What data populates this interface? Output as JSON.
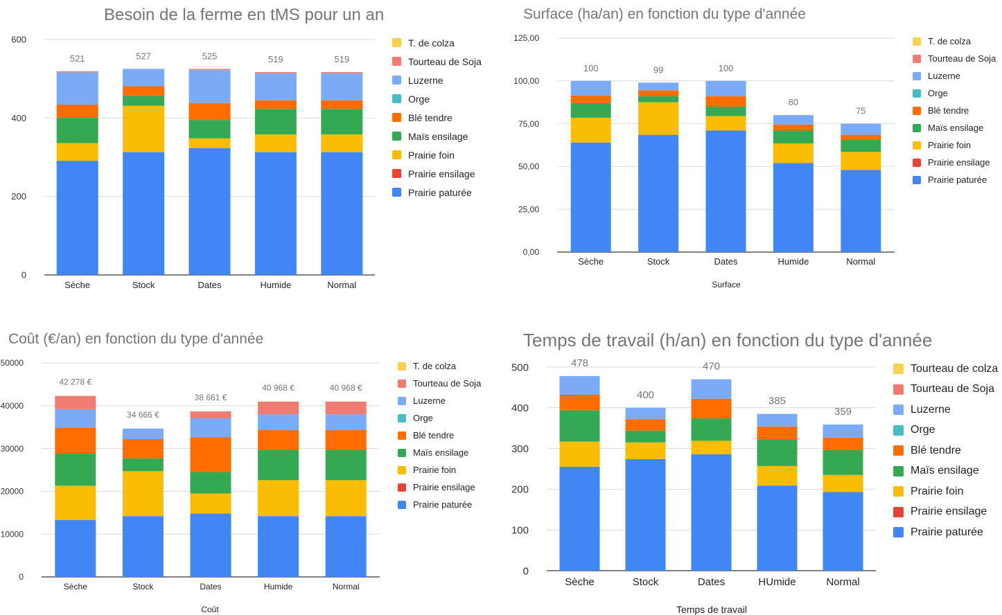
{
  "chart_data": [
    {
      "type": "bar",
      "stacked": true,
      "title": "Besoin de la ferme en tMS pour un an",
      "xlabel": "",
      "ylabel": "",
      "ylim": [
        0,
        600
      ],
      "yticks": [
        "0",
        "200",
        "400",
        "600"
      ],
      "categories": [
        "Sèche",
        "Stock",
        "Dates",
        "Humide",
        "Normal"
      ],
      "totals_labels": [
        "521",
        "527",
        "525",
        "519",
        "519"
      ],
      "series": [
        {
          "name": "Prairie paturée",
          "color": "#4285f4",
          "values": [
            291,
            313,
            323,
            313,
            313
          ]
        },
        {
          "name": "Prairie ensilage",
          "color": "#ea4335",
          "values": [
            0,
            0,
            0,
            0,
            0
          ]
        },
        {
          "name": "Prairie foin",
          "color": "#fbbc04",
          "values": [
            45,
            118,
            25,
            45,
            45
          ]
        },
        {
          "name": "Maïs ensilage",
          "color": "#34a853",
          "values": [
            65,
            25,
            47,
            65,
            65
          ]
        },
        {
          "name": "Blé tendre",
          "color": "#ff6d01",
          "values": [
            33,
            25,
            43,
            22,
            22
          ]
        },
        {
          "name": "Orge",
          "color": "#46bdc6",
          "values": [
            0,
            0,
            0,
            0,
            0
          ]
        },
        {
          "name": "Luzerne",
          "color": "#7baaf7",
          "values": [
            82,
            44,
            84,
            69,
            69
          ]
        },
        {
          "name": "Tourteau de Soja",
          "color": "#f07b72",
          "values": [
            3,
            0,
            3,
            3,
            3
          ]
        },
        {
          "name": "T. de colza",
          "color": "#fcd04f",
          "values": [
            0,
            0,
            0,
            0,
            0
          ]
        }
      ],
      "legend": "right"
    },
    {
      "type": "bar",
      "stacked": true,
      "title": "Surface (ha/an) en fonction du type d'année",
      "xlabel": "Surface",
      "ylabel": "",
      "ylim": [
        0,
        125
      ],
      "yticks": [
        "0,00",
        "25,00",
        "50,00",
        "75,00",
        "100,00",
        "125,00"
      ],
      "categories": [
        "Sèche",
        "Stock",
        "Dates",
        "Humide",
        "Normal"
      ],
      "totals_labels": [
        "100",
        "99",
        "100",
        "80",
        "75"
      ],
      "series": [
        {
          "name": "Prairie paturée",
          "color": "#4285f4",
          "values": [
            64,
            68.5,
            71,
            52,
            48
          ]
        },
        {
          "name": "Prairie ensilage",
          "color": "#ea4335",
          "values": [
            0,
            0,
            0,
            0,
            0
          ]
        },
        {
          "name": "Prairie foin",
          "color": "#fbbc04",
          "values": [
            14.5,
            19,
            8.5,
            11.5,
            10.5
          ]
        },
        {
          "name": "Maïs ensilage",
          "color": "#34a853",
          "values": [
            8.5,
            3.5,
            5.5,
            7.5,
            7
          ]
        },
        {
          "name": "Blé tendre",
          "color": "#ff6d01",
          "values": [
            4.5,
            3.5,
            6,
            3.5,
            3
          ]
        },
        {
          "name": "Orge",
          "color": "#46bdc6",
          "values": [
            0,
            0,
            0,
            0,
            0
          ]
        },
        {
          "name": "Luzerne",
          "color": "#7baaf7",
          "values": [
            8.5,
            4.5,
            9,
            5.5,
            6.5
          ]
        },
        {
          "name": "Tourteau de Soja",
          "color": "#f07b72",
          "values": [
            0,
            0,
            0,
            0,
            0
          ]
        },
        {
          "name": "T. de colza",
          "color": "#fcd04f",
          "values": [
            0,
            0,
            0,
            0,
            0
          ]
        }
      ],
      "legend": "right"
    },
    {
      "type": "bar",
      "stacked": true,
      "title": "Coût (€/an) en fonction du type d'année",
      "xlabel": "Coût",
      "ylabel": "",
      "ylim": [
        0,
        50000
      ],
      "yticks": [
        "0",
        "10000",
        "20000",
        "30000",
        "40000",
        "50000"
      ],
      "categories": [
        "Sèche",
        "Stock",
        "Dates",
        "Humide",
        "Normal"
      ],
      "totals_labels": [
        "42 278 €",
        "34 666 €",
        "38 661 €",
        "40 968 €",
        "40 968 €"
      ],
      "series": [
        {
          "name": "Prairie paturée",
          "color": "#4285f4",
          "values": [
            13300,
            14200,
            14800,
            14200,
            14200
          ]
        },
        {
          "name": "Prairie ensilage",
          "color": "#ea4335",
          "values": [
            0,
            0,
            0,
            0,
            0
          ]
        },
        {
          "name": "Prairie foin",
          "color": "#fbbc04",
          "values": [
            8000,
            10500,
            4700,
            8400,
            8400
          ]
        },
        {
          "name": "Maïs ensilage",
          "color": "#34a853",
          "values": [
            7500,
            3000,
            5000,
            7100,
            7100
          ]
        },
        {
          "name": "Blé tendre",
          "color": "#ff6d01",
          "values": [
            6000,
            4500,
            8100,
            4600,
            4600
          ]
        },
        {
          "name": "Orge",
          "color": "#46bdc6",
          "values": [
            0,
            0,
            0,
            0,
            0
          ]
        },
        {
          "name": "Luzerne",
          "color": "#7baaf7",
          "values": [
            4400,
            2466,
            4461,
            3700,
            3700
          ]
        },
        {
          "name": "Tourteau de Soja",
          "color": "#f07b72",
          "values": [
            3078,
            0,
            1600,
            2968,
            2968
          ]
        },
        {
          "name": "T. de colza",
          "color": "#fcd04f",
          "values": [
            0,
            0,
            0,
            0,
            0
          ]
        }
      ],
      "legend": "right"
    },
    {
      "type": "bar",
      "stacked": true,
      "title": "Temps de travail (h/an) en fonction du type d'année",
      "xlabel": "Temps de travail",
      "ylabel": "",
      "ylim": [
        0,
        500
      ],
      "yticks": [
        "0",
        "100",
        "200",
        "300",
        "400",
        "500"
      ],
      "categories": [
        "Sèche",
        "Stock",
        "Dates",
        "HUmide",
        "Normal"
      ],
      "totals_labels": [
        "478",
        "400",
        "470",
        "385",
        "359"
      ],
      "series": [
        {
          "name": "Prairie paturée",
          "color": "#4285f4",
          "values": [
            255,
            274,
            286,
            209,
            193
          ]
        },
        {
          "name": "Prairie ensilage",
          "color": "#ea4335",
          "values": [
            0,
            0,
            0,
            0,
            0
          ]
        },
        {
          "name": "Prairie foin",
          "color": "#fbbc04",
          "values": [
            62,
            41,
            33,
            48,
            42
          ]
        },
        {
          "name": "Maïs ensilage",
          "color": "#34a853",
          "values": [
            77,
            29,
            55,
            66,
            61
          ]
        },
        {
          "name": "Blé tendre",
          "color": "#ff6d01",
          "values": [
            38,
            28,
            48,
            31,
            31
          ]
        },
        {
          "name": "Orge",
          "color": "#46bdc6",
          "values": [
            0,
            0,
            0,
            0,
            0
          ]
        },
        {
          "name": "Luzerne",
          "color": "#7baaf7",
          "values": [
            46,
            28,
            48,
            31,
            32
          ]
        },
        {
          "name": "Tourteau de Soja",
          "color": "#f07b72",
          "values": [
            0,
            0,
            0,
            0,
            0
          ]
        },
        {
          "name": "Tourteau de colza",
          "color": "#fcd04f",
          "values": [
            0,
            0,
            0,
            0,
            0
          ]
        }
      ],
      "legend": "right"
    }
  ]
}
